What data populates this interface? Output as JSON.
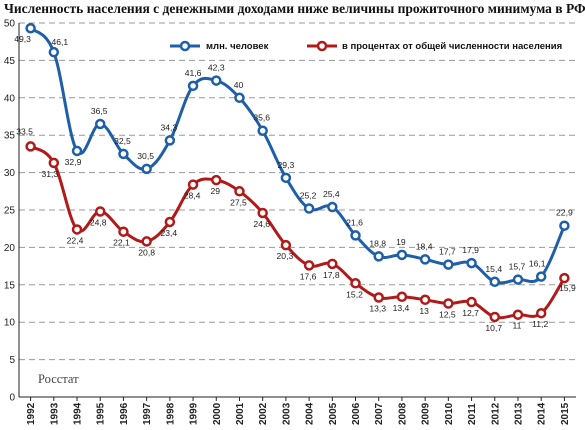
{
  "chart_data": {
    "type": "line",
    "title": "Численность населения с денежными доходами ниже величины прожиточного минимума в РФ",
    "source": "Росстат",
    "x": [
      "1992",
      "1993",
      "1994",
      "1995",
      "1996",
      "1997",
      "1998",
      "1999",
      "2000",
      "2001",
      "2002",
      "2003",
      "2004",
      "2005",
      "2006",
      "2007",
      "2008",
      "2009",
      "2010",
      "2011",
      "2012",
      "2013",
      "2014",
      "2015"
    ],
    "yticks": [
      "0",
      "5",
      "10",
      "15",
      "20",
      "25",
      "30",
      "35",
      "40",
      "45",
      "50"
    ],
    "ylim": [
      0,
      50
    ],
    "grid": true,
    "legend_position": "top",
    "series": [
      {
        "name": "млн. человек",
        "color": "#1f5fa8",
        "values": [
          49.3,
          46.1,
          32.9,
          36.5,
          32.5,
          30.5,
          34.3,
          41.6,
          42.3,
          40,
          35.6,
          29.3,
          25.2,
          25.4,
          21.6,
          18.8,
          19,
          18.4,
          17.7,
          17.9,
          15.4,
          15.7,
          16.1,
          22.9
        ],
        "labels": [
          "49,3",
          "46,1",
          "32,9",
          "36,5",
          "32,5",
          "30,5",
          "34,3",
          "41,6",
          "42,3",
          "40",
          "35,6",
          "29,3",
          "25,2",
          "25,4",
          "21,6",
          "18,8",
          "19",
          "18,4",
          "17,7",
          "17,9",
          "15,4",
          "15,7",
          "16,1",
          "22,9"
        ]
      },
      {
        "name": "в процентах от общей численности населения",
        "color": "#b01a1a",
        "values": [
          33.5,
          31.3,
          22.4,
          24.8,
          22.1,
          20.8,
          23.4,
          28.4,
          29,
          27.5,
          24.6,
          20.3,
          17.6,
          17.8,
          15.2,
          13.3,
          13.4,
          13,
          12.5,
          12.7,
          10.7,
          11,
          11.2,
          15.9
        ],
        "labels": [
          "33,5",
          "31,3",
          "22,4",
          "24,8",
          "22,1",
          "20,8",
          "23,4",
          "28,4",
          "29",
          "27,5",
          "24,6",
          "20,3",
          "17,6",
          "17,8",
          "15,2",
          "13,3",
          "13,4",
          "13",
          "12,5",
          "12,7",
          "10,7",
          "11",
          "11,2",
          "15,9"
        ]
      }
    ]
  }
}
